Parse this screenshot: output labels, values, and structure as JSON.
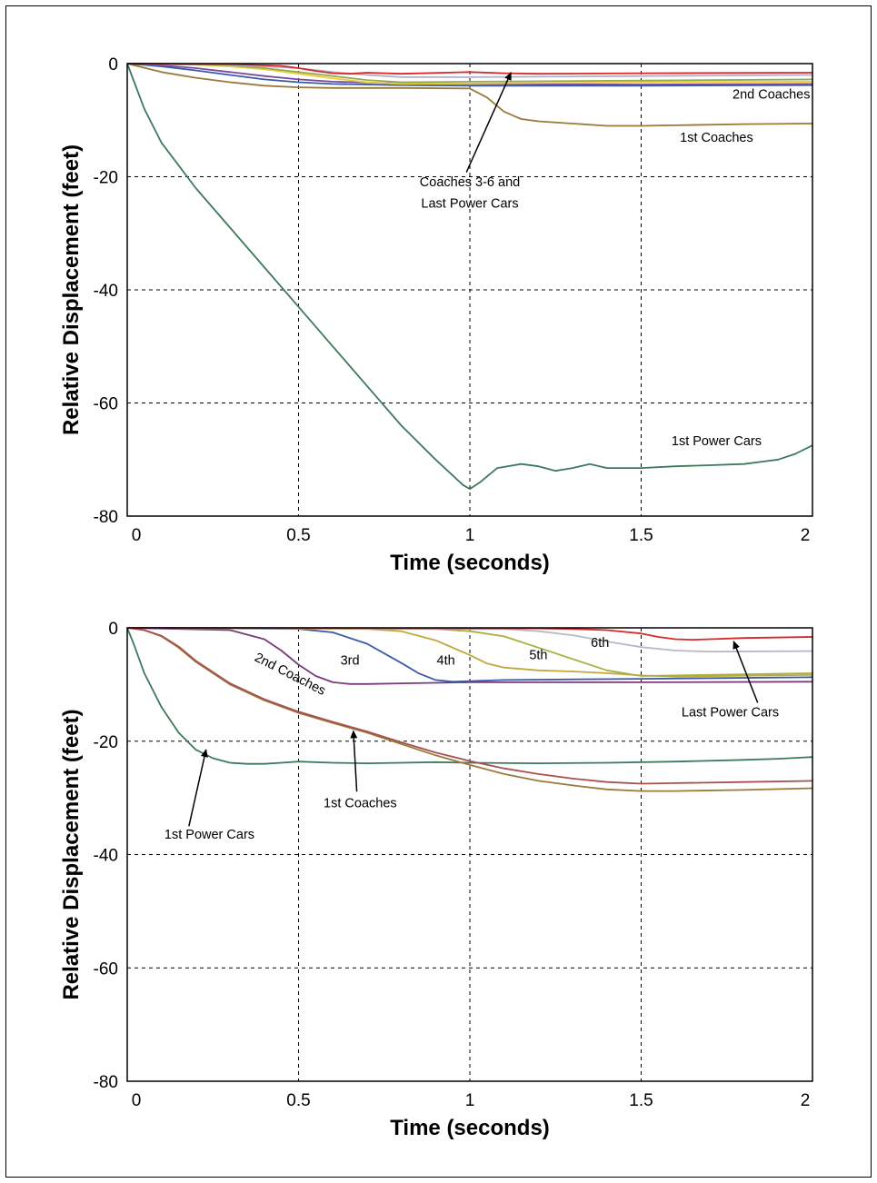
{
  "chart_data": [
    {
      "type": "line",
      "xlabel": "Time (seconds)",
      "ylabel": "Relative Displacement (feet)",
      "xlim": [
        0,
        2
      ],
      "ylim": [
        -80,
        0
      ],
      "xticks": [
        "0",
        "0.5",
        "1",
        "1.5",
        "2"
      ],
      "yticks": [
        "0",
        "-20",
        "-40",
        "-60",
        "-80"
      ],
      "grid": true,
      "series": [
        {
          "color": "#3d7a5a",
          "x": [
            0,
            0.05,
            0.1,
            0.2,
            0.3,
            0.4,
            0.5,
            0.6,
            0.7,
            0.8,
            0.9,
            0.98,
            1.0,
            1.03,
            1.08,
            1.15,
            1.2,
            1.25,
            1.3,
            1.35,
            1.4,
            1.5,
            1.6,
            1.7,
            1.8,
            1.9,
            1.95,
            2.0
          ],
          "y": [
            0,
            -8,
            -14,
            -22,
            -29,
            -36,
            -43,
            -50,
            -57,
            -64,
            -70,
            -74.5,
            -75.2,
            -74,
            -71.5,
            -70.8,
            -71.2,
            -72,
            -71.5,
            -70.8,
            -71.5,
            -71.5,
            -71.2,
            -71,
            -70.8,
            -70,
            -69,
            -67.5
          ]
        },
        {
          "color": "#9a7a3a",
          "x": [
            0,
            0.1,
            0.2,
            0.3,
            0.4,
            0.5,
            0.6,
            0.8,
            1.0,
            1.05,
            1.1,
            1.15,
            1.2,
            1.3,
            1.4,
            1.5,
            1.6,
            1.8,
            2.0
          ],
          "y": [
            0,
            -1.5,
            -2.5,
            -3.3,
            -3.9,
            -4.2,
            -4.3,
            -4.3,
            -4.4,
            -6,
            -8.5,
            -9.8,
            -10.2,
            -10.6,
            -11,
            -11,
            -10.9,
            -10.7,
            -10.6
          ]
        },
        {
          "color": "#3a5aa8",
          "x": [
            0,
            0.1,
            0.2,
            0.3,
            0.4,
            0.5,
            0.6,
            0.8,
            1.0,
            1.2,
            1.5,
            2.0
          ],
          "y": [
            0,
            -0.5,
            -1.2,
            -2,
            -2.8,
            -3.3,
            -3.6,
            -3.8,
            -3.9,
            -3.9,
            -3.9,
            -3.8
          ]
        },
        {
          "color": "#7a4a9a",
          "x": [
            0,
            0.1,
            0.2,
            0.3,
            0.4,
            0.5,
            0.6,
            0.8,
            1.0,
            1.5,
            2.0
          ],
          "y": [
            0,
            -0.3,
            -0.8,
            -1.5,
            -2.2,
            -2.8,
            -3.2,
            -3.5,
            -3.6,
            -3.7,
            -3.6
          ]
        },
        {
          "color": "#e8d040",
          "x": [
            0,
            0.2,
            0.3,
            0.4,
            0.5,
            0.6,
            0.7,
            0.8,
            1.0,
            1.5,
            2.0
          ],
          "y": [
            0,
            -0.2,
            -0.5,
            -1,
            -1.8,
            -2.6,
            -3.3,
            -3.6,
            -3.5,
            -3.3,
            -3.2
          ]
        },
        {
          "color": "#9aaa50",
          "x": [
            0,
            0.3,
            0.4,
            0.5,
            0.6,
            0.7,
            0.8,
            1.0,
            1.5,
            2.0
          ],
          "y": [
            0,
            -0.3,
            -0.8,
            -1.5,
            -2.2,
            -2.9,
            -3.3,
            -3.2,
            -3.0,
            -2.8
          ]
        },
        {
          "color": "#b0b0c8",
          "x": [
            0,
            0.3,
            0.5,
            0.6,
            0.7,
            0.8,
            1.0,
            1.5,
            2.0
          ],
          "y": [
            0,
            -0.2,
            -0.8,
            -1.5,
            -2.0,
            -2.4,
            -2.4,
            -2.2,
            -2.0
          ]
        },
        {
          "color": "#d82828",
          "x": [
            0,
            0.3,
            0.45,
            0.5,
            0.55,
            0.6,
            0.65,
            0.7,
            0.8,
            1.0,
            1.1,
            1.2,
            1.5,
            2.0
          ],
          "y": [
            0,
            -0.1,
            -0.4,
            -0.8,
            -1.3,
            -1.7,
            -1.8,
            -1.6,
            -1.8,
            -1.5,
            -1.7,
            -1.8,
            -1.7,
            -1.6
          ]
        }
      ],
      "annotations": [
        {
          "text": "2nd Coaches",
          "x": 1.88,
          "y": -6.2
        },
        {
          "text": "1st Coaches",
          "x": 1.72,
          "y": -13.8
        },
        {
          "text": "Coaches 3-6 and",
          "x": 1.0,
          "y": -21.7
        },
        {
          "text": "Last Power Cars",
          "x": 1.0,
          "y": -25.5
        },
        {
          "text": "1st Power Cars",
          "x": 1.72,
          "y": -67.5
        }
      ],
      "arrows": [
        {
          "from": [
            0.99,
            -19.2
          ],
          "to": [
            1.12,
            -1.6
          ]
        }
      ]
    },
    {
      "type": "line",
      "xlabel": "Time (seconds)",
      "ylabel": "Relative Displacement (feet)",
      "xlim": [
        0,
        2
      ],
      "ylim": [
        -80,
        0
      ],
      "xticks": [
        "0",
        "0.5",
        "1",
        "1.5",
        "2"
      ],
      "yticks": [
        "0",
        "-20",
        "-40",
        "-60",
        "-80"
      ],
      "grid": true,
      "series": [
        {
          "color": "#3d7a5a",
          "x": [
            0,
            0.02,
            0.05,
            0.1,
            0.15,
            0.2,
            0.25,
            0.3,
            0.35,
            0.4,
            0.45,
            0.5,
            0.6,
            0.7,
            0.8,
            0.9,
            1.0,
            1.2,
            1.4,
            1.6,
            1.8,
            1.9,
            2.0
          ],
          "y": [
            0,
            -3,
            -8,
            -14,
            -18.5,
            -21.5,
            -23,
            -23.8,
            -24,
            -24,
            -23.8,
            -23.6,
            -23.8,
            -23.9,
            -23.8,
            -23.7,
            -23.8,
            -23.9,
            -23.8,
            -23.6,
            -23.3,
            -23.1,
            -22.8
          ]
        },
        {
          "color": "#9a7a3a",
          "x": [
            0,
            0.05,
            0.1,
            0.15,
            0.2,
            0.3,
            0.4,
            0.5,
            0.6,
            0.7,
            0.8,
            0.9,
            1.0,
            1.1,
            1.2,
            1.3,
            1.4,
            1.5,
            1.6,
            1.8,
            2.0
          ],
          "y": [
            0,
            -0.4,
            -1.5,
            -3.5,
            -6,
            -10,
            -12.8,
            -15,
            -16.8,
            -18.5,
            -20.5,
            -22.5,
            -24.2,
            -25.8,
            -27,
            -27.8,
            -28.5,
            -28.8,
            -28.8,
            -28.6,
            -28.3
          ]
        },
        {
          "color": "#a85050",
          "x": [
            0,
            0.05,
            0.1,
            0.15,
            0.2,
            0.3,
            0.4,
            0.5,
            0.6,
            0.7,
            0.8,
            0.9,
            1.0,
            1.1,
            1.2,
            1.3,
            1.4,
            1.5,
            1.6,
            1.8,
            2.0
          ],
          "y": [
            0,
            -0.4,
            -1.4,
            -3.3,
            -5.8,
            -9.8,
            -12.6,
            -14.8,
            -16.6,
            -18.3,
            -20.2,
            -22,
            -23.5,
            -24.8,
            -25.8,
            -26.6,
            -27.2,
            -27.5,
            -27.4,
            -27.2,
            -27.0
          ]
        },
        {
          "color": "#7a3a7a",
          "x": [
            0,
            0.3,
            0.4,
            0.45,
            0.5,
            0.55,
            0.6,
            0.65,
            0.7,
            0.8,
            1.0,
            1.5,
            2.0
          ],
          "y": [
            0,
            -0.4,
            -2,
            -4,
            -6.5,
            -8.5,
            -9.6,
            -9.9,
            -9.9,
            -9.8,
            -9.6,
            -9.6,
            -9.5
          ]
        },
        {
          "color": "#3a5aa8",
          "x": [
            0,
            0.5,
            0.6,
            0.7,
            0.8,
            0.85,
            0.9,
            0.95,
            1.0,
            1.1,
            1.5,
            2.0
          ],
          "y": [
            0,
            -0.2,
            -0.8,
            -2.8,
            -6.2,
            -8,
            -9.2,
            -9.5,
            -9.4,
            -9.2,
            -9,
            -8.7
          ]
        },
        {
          "color": "#c0a840",
          "x": [
            0,
            0.7,
            0.8,
            0.9,
            1.0,
            1.05,
            1.1,
            1.2,
            1.3,
            1.4,
            1.5,
            1.6,
            2.0
          ],
          "y": [
            0,
            -0.2,
            -0.6,
            -2.2,
            -4.8,
            -6.3,
            -7,
            -7.5,
            -7.7,
            -8,
            -8.4,
            -8.6,
            -8.3
          ]
        },
        {
          "color": "#a8b040",
          "x": [
            0,
            0.9,
            1.0,
            1.1,
            1.2,
            1.3,
            1.4,
            1.5,
            2.0
          ],
          "y": [
            0,
            -0.2,
            -0.6,
            -1.5,
            -3.5,
            -5.5,
            -7.5,
            -8.5,
            -8.0
          ]
        },
        {
          "color": "#b8b8c8",
          "x": [
            0,
            1.1,
            1.2,
            1.3,
            1.4,
            1.5,
            1.6,
            1.7,
            2.0
          ],
          "y": [
            0,
            -0.2,
            -0.6,
            -1.3,
            -2.4,
            -3.4,
            -4.0,
            -4.2,
            -4.1
          ]
        },
        {
          "color": "#d82828",
          "x": [
            0,
            1.2,
            1.3,
            1.4,
            1.5,
            1.55,
            1.6,
            1.65,
            1.7,
            1.8,
            2.0
          ],
          "y": [
            0,
            -0.1,
            -0.2,
            -0.4,
            -1,
            -1.6,
            -2,
            -2.1,
            -2.0,
            -1.8,
            -1.6
          ]
        }
      ],
      "annotations": [
        {
          "text": "2nd Coaches",
          "x": 0.47,
          "y": -8.8,
          "rotate": 27
        },
        {
          "text": "3rd",
          "x": 0.65,
          "y": -6.5
        },
        {
          "text": "4th",
          "x": 0.93,
          "y": -6.5
        },
        {
          "text": "5th",
          "x": 1.2,
          "y": -5.5
        },
        {
          "text": "6th",
          "x": 1.38,
          "y": -3.4
        },
        {
          "text": "Last Power Cars",
          "x": 1.76,
          "y": -15.6
        },
        {
          "text": "1st Coaches",
          "x": 0.68,
          "y": -31.7
        },
        {
          "text": "1st Power Cars",
          "x": 0.24,
          "y": -37.2
        }
      ],
      "arrows": [
        {
          "from": [
            1.84,
            -13.2
          ],
          "to": [
            1.77,
            -2.4
          ]
        },
        {
          "from": [
            0.67,
            -28.9
          ],
          "to": [
            0.66,
            -18.2
          ]
        },
        {
          "from": [
            0.18,
            -35.0
          ],
          "to": [
            0.23,
            -21.5
          ]
        }
      ]
    }
  ]
}
